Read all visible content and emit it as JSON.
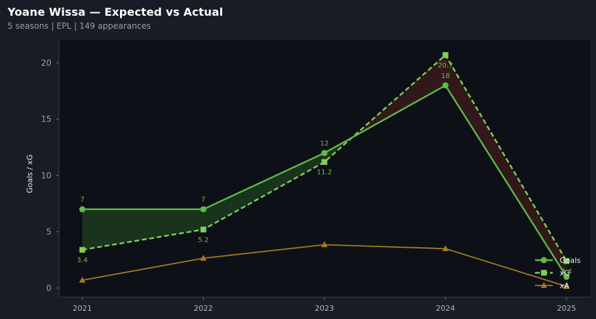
{
  "header": {
    "title": "Yoane Wissa — Expected vs Actual",
    "subtitle": "5 seasons | EPL | 149 appearances"
  },
  "chart_data": {
    "type": "line",
    "x": [
      "2021",
      "2022",
      "2023",
      "2024",
      "2025"
    ],
    "xlabel": "",
    "ylabel": "Goals / xG",
    "ylim": [
      -0.8,
      22
    ],
    "yticks": [
      0,
      5,
      10,
      15,
      20
    ],
    "grid": false,
    "legend": "bottom-right",
    "series": [
      {
        "name": "Goals",
        "values": [
          7,
          7,
          12,
          18,
          1
        ],
        "color": "#5dbb46",
        "marker": "circle",
        "style": "solid",
        "labels": [
          "7",
          "7",
          "12",
          "18",
          ""
        ]
      },
      {
        "name": "xG",
        "values": [
          3.4,
          5.2,
          11.2,
          20.7,
          2.4
        ],
        "color": "#7ed15a",
        "marker": "square",
        "style": "dashed",
        "labels": [
          "3.4",
          "5.2",
          "11.2",
          "20.7",
          "2.4"
        ]
      },
      {
        "name": "xA",
        "values": [
          0.7,
          2.65,
          3.85,
          3.5,
          0.15
        ],
        "color": "#a27a23",
        "marker": "triangle",
        "style": "solid"
      }
    ],
    "fills": {
      "above_color": "#1d3a1e",
      "below_color": "#3a1a1c"
    }
  }
}
